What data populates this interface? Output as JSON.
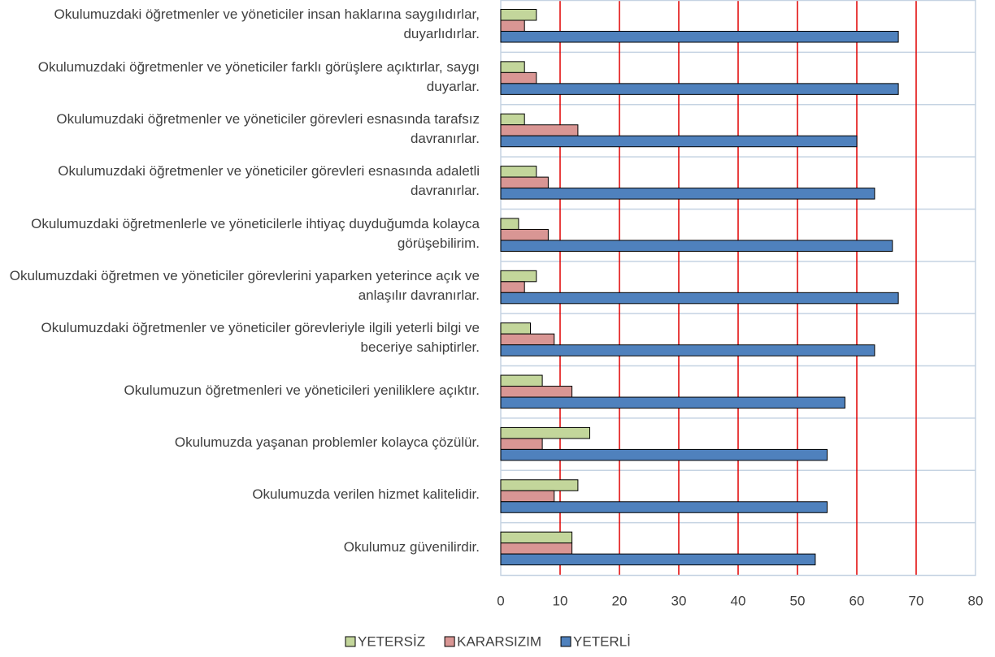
{
  "chart_data": {
    "type": "bar",
    "orientation": "horizontal",
    "categories": [
      "Okulumuzdaki öğretmenler ve yöneticiler insan haklarına saygılıdırlar, duyarlıdırlar.",
      "Okulumuzdaki öğretmenler ve yöneticiler farklı görüşlere açıktırlar, saygı duyarlar.",
      "Okulumuzdaki öğretmenler ve yöneticiler görevleri esnasında tarafsız davranırlar.",
      "Okulumuzdaki öğretmenler ve yöneticiler görevleri esnasında adaletli davranırlar.",
      "Okulumuzdaki öğretmenlerle ve yöneticilerle ihtiyaç duyduğumda kolayca görüşebilirim.",
      "Okulumuzdaki öğretmen ve yöneticiler görevlerini yaparken yeterince açık ve anlaşılır davranırlar.",
      "Okulumuzdaki öğretmenler ve yöneticiler görevleriyle ilgili yeterli bilgi ve beceriye sahiptirler.",
      "Okulumuzun öğretmenleri ve yöneticileri yeniliklere açıktır.",
      "Okulumuzda yaşanan problemler kolayca çözülür.",
      "Okulumuzda verilen hizmet kalitelidir.",
      "Okulumuz güvenilirdir."
    ],
    "series": [
      {
        "name": "YETERSİZ",
        "color": "#c3d69b",
        "values": [
          6,
          4,
          4,
          6,
          3,
          6,
          5,
          7,
          15,
          13,
          12
        ]
      },
      {
        "name": "KARARSIZIM",
        "color": "#d99694",
        "values": [
          4,
          6,
          13,
          8,
          8,
          4,
          9,
          12,
          7,
          9,
          12
        ]
      },
      {
        "name": "YETERLİ",
        "color": "#4f81bd",
        "values": [
          67,
          67,
          60,
          63,
          66,
          67,
          63,
          58,
          55,
          55,
          53
        ]
      }
    ],
    "xlim": [
      0,
      80
    ],
    "xticks": [
      0,
      10,
      20,
      30,
      40,
      50,
      60,
      70,
      80
    ],
    "grid": true,
    "grid_color": "#e00000",
    "legend": "bottom"
  }
}
